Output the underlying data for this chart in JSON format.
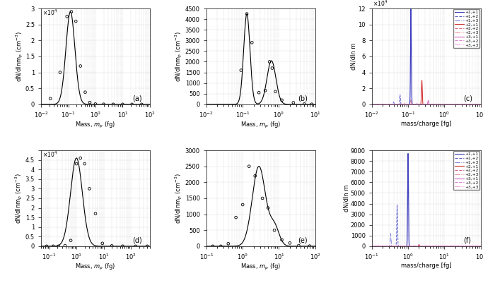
{
  "panel_a": {
    "label": "(a)",
    "xlabel": "Mass, m_p (fg)",
    "ylabel": "dN/dlnm_p (cm^-3)",
    "ylim": [
      0,
      30000
    ],
    "xlim_lo": 0.01,
    "xlim_hi": 100,
    "peak_mass": 0.12,
    "peak_val": 29000,
    "sigma": 0.38,
    "scatter_x": [
      0.022,
      0.05,
      0.09,
      0.13,
      0.19,
      0.28,
      0.42,
      0.62,
      1.0,
      2.0,
      4.5,
      10.0,
      22.0,
      50.0
    ],
    "scatter_y": [
      1800,
      10000,
      27500,
      29000,
      26000,
      12000,
      3800,
      600,
      100,
      30,
      8,
      3,
      1,
      0
    ]
  },
  "panel_b": {
    "label": "(b)",
    "xlabel": "Mass, m_p (fg)",
    "ylabel": "dN/dlnm_p (cm^-3)",
    "ylim": [
      0,
      4500
    ],
    "xlim_lo": 0.01,
    "xlim_hi": 10,
    "scatter_x": [
      0.09,
      0.13,
      0.18,
      0.28,
      0.42,
      0.55,
      0.65,
      0.8,
      1.2,
      2.5,
      5.0,
      8.0
    ],
    "scatter_y": [
      1600,
      4250,
      2900,
      550,
      650,
      2000,
      1700,
      600,
      200,
      80,
      15,
      5
    ]
  },
  "panel_c": {
    "label": "(c)",
    "xlabel": "mass/charge [fg]",
    "ylabel": "dN/dln m",
    "ylim": [
      0,
      120000
    ],
    "xlim_lo": 0.01,
    "xlim_hi": 10,
    "peaks": [
      {
        "mass": 0.12,
        "amp": 120000,
        "sigma": 0.025,
        "color": "#4040C0",
        "ls": "-",
        "lw": 0.9
      },
      {
        "mass": 0.06,
        "amp": 12000,
        "sigma": 0.025,
        "color": "#6060D0",
        "ls": "--",
        "lw": 0.7
      },
      {
        "mass": 0.04,
        "amp": 3000,
        "sigma": 0.025,
        "color": "#8080E0",
        "ls": "-.",
        "lw": 0.7
      },
      {
        "mass": 0.24,
        "amp": 30000,
        "sigma": 0.025,
        "color": "#D03030",
        "ls": "-",
        "lw": 0.8
      },
      {
        "mass": 0.12,
        "amp": 5000,
        "sigma": 0.025,
        "color": "#E06080",
        "ls": "--",
        "lw": 0.7
      },
      {
        "mass": 0.08,
        "amp": 2000,
        "sigma": 0.025,
        "color": "#F090A0",
        "ls": "-.",
        "lw": 0.7
      },
      {
        "mass": 0.36,
        "amp": 5000,
        "sigma": 0.025,
        "color": "#D060C0",
        "ls": "-",
        "lw": 0.7
      },
      {
        "mass": 0.18,
        "amp": 1500,
        "sigma": 0.025,
        "color": "#E080D0",
        "ls": "--",
        "lw": 0.7
      },
      {
        "mass": 0.12,
        "amp": 500,
        "sigma": 0.025,
        "color": "#F0A0E0",
        "ls": "-.",
        "lw": 0.6
      }
    ],
    "ytick_vals": [
      0,
      20000,
      40000,
      60000,
      80000,
      100000,
      120000
    ],
    "ytick_labels": [
      "0",
      "2",
      "4",
      "6",
      "8",
      "10",
      "12"
    ]
  },
  "panel_d": {
    "label": "(d)",
    "xlabel": "Mass, m_p (fg)",
    "ylabel": "dN/dlnm_p (cm^-3)",
    "ylim": [
      0,
      50000
    ],
    "xlim_lo": 0.05,
    "xlim_hi": 500,
    "peak_mass": 1.0,
    "peak_val": 46000,
    "sigma": 0.5,
    "scatter_x": [
      0.08,
      0.14,
      0.22,
      0.38,
      0.62,
      1.0,
      1.4,
      2.0,
      3.0,
      5.0,
      9.0,
      20.0,
      50.0,
      150.0,
      400.0
    ],
    "scatter_y": [
      0,
      0,
      0,
      300,
      3000,
      43000,
      46000,
      43000,
      30000,
      17000,
      1500,
      200,
      30,
      5,
      1
    ]
  },
  "panel_e": {
    "label": "(e)",
    "xlabel": "Mass, m_p (fg)",
    "ylabel": "dN/dlnm_p (cm^-3)",
    "ylim": [
      0,
      3000
    ],
    "xlim_lo": 0.1,
    "xlim_hi": 100,
    "scatter_x": [
      0.15,
      0.25,
      0.4,
      0.65,
      1.0,
      1.5,
      2.2,
      3.5,
      5.0,
      7.5,
      12.0,
      20.0,
      35.0,
      70.0
    ],
    "scatter_y": [
      0,
      0,
      80,
      900,
      1300,
      2500,
      2200,
      1500,
      1200,
      500,
      200,
      100,
      20,
      5
    ]
  },
  "panel_f": {
    "label": "(f)",
    "xlabel": "mass/charge [fg]",
    "ylabel": "dN/dln m",
    "ylim": [
      0,
      9000
    ],
    "xlim_lo": 0.1,
    "xlim_hi": 100,
    "peaks": [
      {
        "mass": 1.0,
        "amp": 8700,
        "sigma": 0.025,
        "color": "#4040C0",
        "ls": "-",
        "lw": 0.9
      },
      {
        "mass": 0.5,
        "amp": 3900,
        "sigma": 0.025,
        "color": "#6060D0",
        "ls": "--",
        "lw": 0.7
      },
      {
        "mass": 0.33,
        "amp": 1200,
        "sigma": 0.025,
        "color": "#8080E0",
        "ls": "-.",
        "lw": 0.7
      },
      {
        "mass": 2.0,
        "amp": 150,
        "sigma": 0.025,
        "color": "#D03030",
        "ls": "-",
        "lw": 0.8
      },
      {
        "mass": 1.0,
        "amp": 50,
        "sigma": 0.025,
        "color": "#E06080",
        "ls": "--",
        "lw": 0.7
      },
      {
        "mass": 0.67,
        "amp": 20,
        "sigma": 0.025,
        "color": "#F090A0",
        "ls": "-.",
        "lw": 0.7
      },
      {
        "mass": 3.0,
        "amp": 30,
        "sigma": 0.025,
        "color": "#D060C0",
        "ls": "-",
        "lw": 0.7
      },
      {
        "mass": 1.5,
        "amp": 10,
        "sigma": 0.025,
        "color": "#E080D0",
        "ls": "--",
        "lw": 0.7
      },
      {
        "mass": 1.0,
        "amp": 5,
        "sigma": 0.025,
        "color": "#F0A0E0",
        "ls": "-.",
        "lw": 0.6
      }
    ],
    "ytick_vals": [
      0,
      1000,
      2000,
      3000,
      4000,
      5000,
      6000,
      7000,
      8000,
      9000
    ],
    "ytick_labels": [
      "0",
      "1000",
      "2000",
      "3000",
      "4000",
      "5000",
      "6000",
      "7000",
      "8000",
      "9000"
    ]
  },
  "legend_labels": [
    "+1,+1",
    "+1,+2",
    "+1,+3",
    "+2,+1",
    "+2,+2",
    "+2,+3",
    "+3,+1",
    "+3,+2",
    "+3,+3"
  ]
}
